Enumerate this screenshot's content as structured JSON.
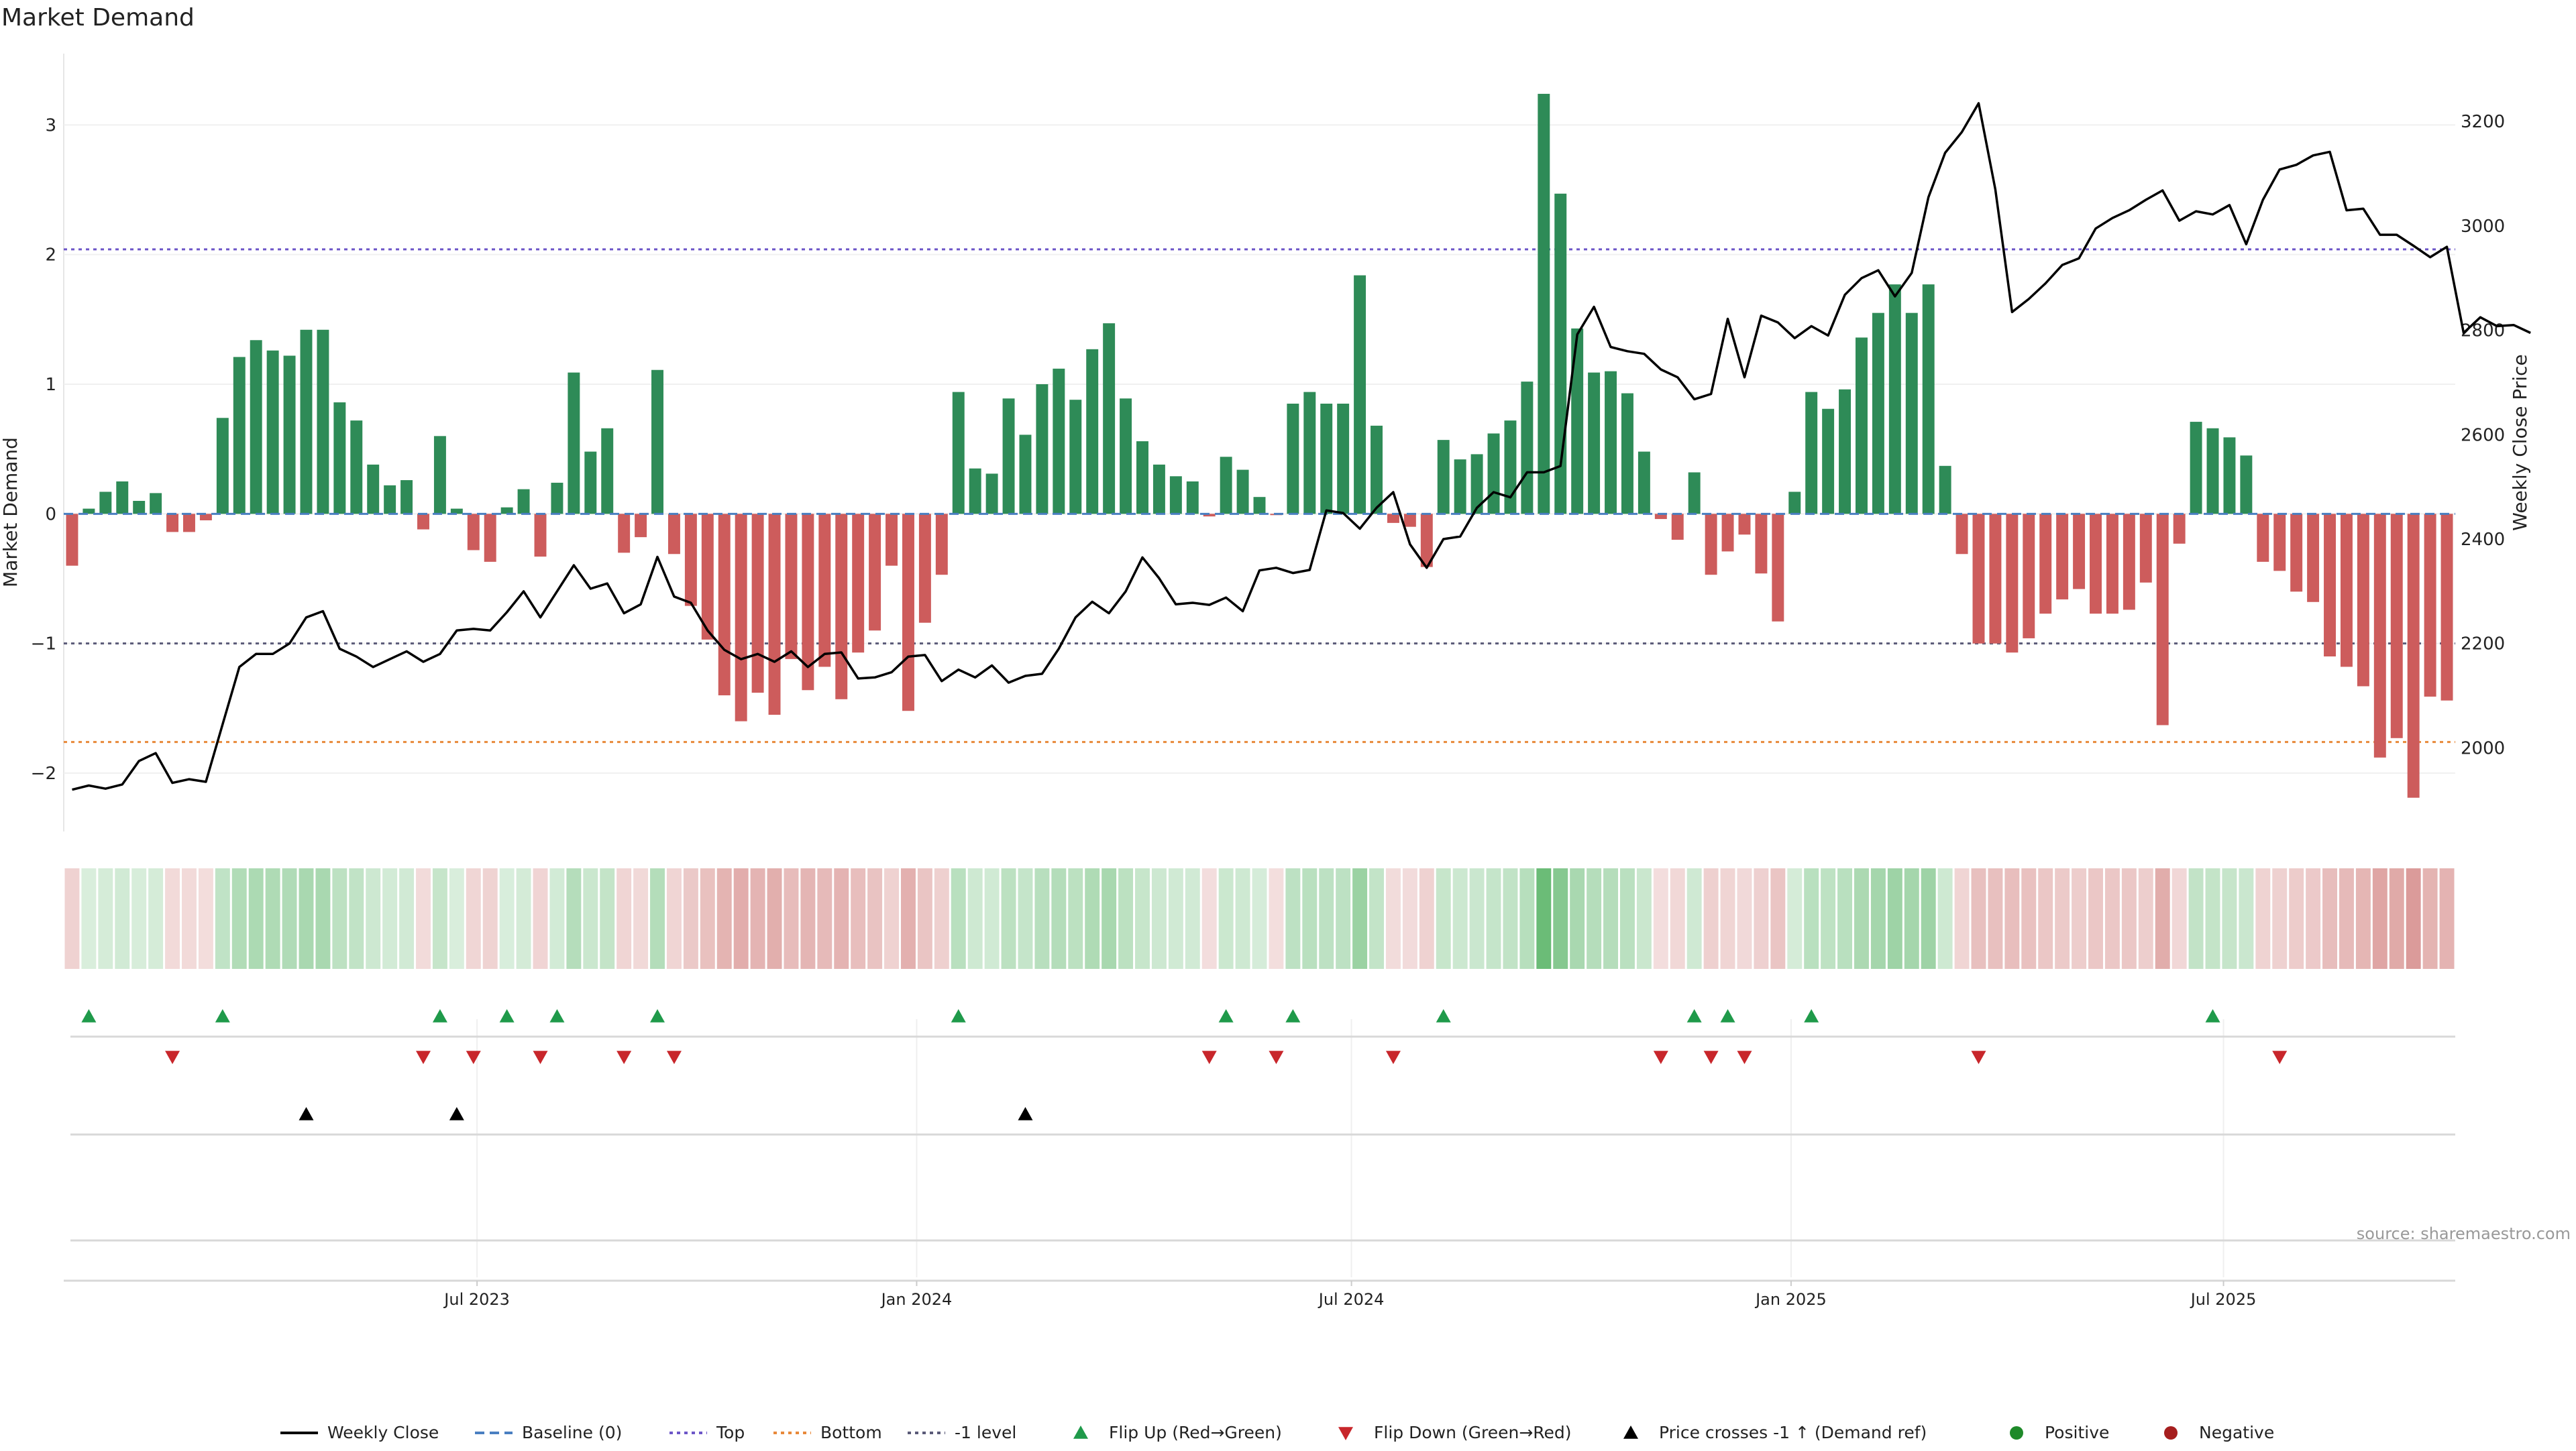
{
  "chart_data": {
    "type": "bar",
    "title": "Market Demand",
    "ylabel_left": "Market Demand",
    "ylabel_right": "Weekly Close Price",
    "source": "source: sharemaestro.com",
    "x_start": "2023-01-09",
    "x_end": "2025-10-06",
    "x_ticks": [
      {
        "date": "2023-07-01",
        "label": "Jul 2023"
      },
      {
        "date": "2024-01-01",
        "label": "Jan 2024"
      },
      {
        "date": "2024-07-01",
        "label": "Jul 2024"
      },
      {
        "date": "2025-01-01",
        "label": "Jan 2025"
      },
      {
        "date": "2025-07-01",
        "label": "Jul 2025"
      }
    ],
    "y_left_ticks": [
      {
        "v": 3,
        "label": "3"
      },
      {
        "v": 2,
        "label": "2"
      },
      {
        "v": 1,
        "label": "1"
      },
      {
        "v": 0,
        "label": "0"
      },
      {
        "v": -1,
        "label": "−1"
      },
      {
        "v": -2,
        "label": "−2"
      }
    ],
    "y_left_range": [
      -2.45,
      3.55
    ],
    "y_right_ticks": [
      {
        "v": 3200,
        "label": "3200"
      },
      {
        "v": 3000,
        "label": "3000"
      },
      {
        "v": 2800,
        "label": "2800"
      },
      {
        "v": 2600,
        "label": "2600"
      },
      {
        "v": 2400,
        "label": "2400"
      },
      {
        "v": 2200,
        "label": "2200"
      },
      {
        "v": 2000,
        "label": "2000"
      }
    ],
    "y_right_range": [
      1840,
      3330
    ],
    "levels": {
      "top": 2.04,
      "bottom": -1.76,
      "minus_one": -1.0
    },
    "demand": [
      -0.4,
      0.04,
      0.17,
      0.25,
      0.1,
      0.16,
      -0.14,
      -0.14,
      -0.05,
      0.74,
      1.21,
      1.34,
      1.26,
      1.22,
      1.42,
      1.42,
      0.86,
      0.72,
      0.38,
      0.22,
      0.26,
      -0.12,
      0.6,
      0.04,
      -0.28,
      -0.37,
      0.05,
      0.19,
      -0.33,
      0.24,
      1.09,
      0.48,
      0.66,
      -0.3,
      -0.18,
      1.11,
      -0.31,
      -0.71,
      -0.97,
      -1.4,
      -1.6,
      -1.38,
      -1.55,
      -1.12,
      -1.36,
      -1.18,
      -1.43,
      -1.07,
      -0.9,
      -0.4,
      -1.52,
      -0.84,
      -0.47,
      0.94,
      0.35,
      0.31,
      0.89,
      0.61,
      1.0,
      1.12,
      0.88,
      1.27,
      1.47,
      0.89,
      0.56,
      0.38,
      0.29,
      0.25,
      -0.02,
      0.44,
      0.34,
      0.13,
      -0.01,
      0.85,
      0.94,
      0.85,
      0.85,
      1.84,
      0.68,
      -0.07,
      -0.1,
      -0.41,
      0.57,
      0.42,
      0.46,
      0.62,
      0.72,
      1.02,
      3.24,
      2.47,
      1.43,
      1.09,
      1.1,
      0.93,
      0.48,
      -0.04,
      -0.2,
      0.32,
      -0.47,
      -0.29,
      -0.16,
      -0.46,
      -0.83,
      0.17,
      0.94,
      0.81,
      0.96,
      1.36,
      1.55,
      1.77,
      1.55,
      1.77,
      0.37,
      -0.31,
      -1.0,
      -1.0,
      -1.07,
      -0.96,
      -0.77,
      -0.66,
      -0.58,
      -0.77,
      -0.77,
      -0.74,
      -0.53,
      -1.63,
      -0.23,
      0.71,
      0.66,
      0.59,
      0.45,
      -0.37,
      -0.44,
      -0.6,
      -0.68,
      -1.1,
      -1.18,
      -1.33,
      -1.88,
      -1.73,
      -2.19,
      -1.41,
      -1.44
    ],
    "close": [
      1920,
      1928,
      1922,
      1930,
      1975,
      1990,
      1933,
      1940,
      1935,
      2045,
      2155,
      2180,
      2180,
      2200,
      2250,
      2262,
      2190,
      2175,
      2155,
      2170,
      2185,
      2165,
      2180,
      2225,
      2228,
      2225,
      2260,
      2300,
      2250,
      2300,
      2350,
      2305,
      2315,
      2258,
      2275,
      2366,
      2290,
      2278,
      2225,
      2188,
      2170,
      2180,
      2165,
      2185,
      2155,
      2180,
      2183,
      2133,
      2135,
      2145,
      2175,
      2178,
      2128,
      2150,
      2135,
      2158,
      2125,
      2138,
      2142,
      2190,
      2250,
      2280,
      2258,
      2300,
      2365,
      2325,
      2275,
      2278,
      2274,
      2288,
      2262,
      2340,
      2345,
      2335,
      2341,
      2455,
      2450,
      2420,
      2460,
      2490,
      2390,
      2345,
      2400,
      2405,
      2460,
      2490,
      2480,
      2528,
      2528,
      2540,
      2792,
      2845,
      2768,
      2760,
      2755,
      2725,
      2710,
      2668,
      2678,
      2822,
      2710,
      2828,
      2815,
      2785,
      2808,
      2790,
      2868,
      2900,
      2915,
      2865,
      2910,
      3055,
      3140,
      3180,
      3235,
      3070,
      2835,
      2860,
      2890,
      2925,
      2938,
      2995,
      3015,
      3030,
      3050,
      3068,
      3010,
      3028,
      3022,
      3040,
      2965,
      3050,
      3108,
      3117,
      3135,
      3142,
      3030,
      3033,
      2983,
      2983,
      2962,
      2940,
      2960,
      2795,
      2825,
      2808,
      2810,
      2795
    ],
    "flip_up": [
      1,
      9,
      22,
      26,
      29,
      35,
      53,
      69,
      73,
      82,
      97,
      99,
      104,
      128
    ],
    "flip_down": [
      6,
      21,
      24,
      28,
      33,
      36,
      68,
      72,
      79,
      95,
      98,
      100,
      114,
      132
    ],
    "cross_up": [
      14,
      23,
      57
    ],
    "legend": [
      {
        "label": "Weekly Close",
        "kind": "line",
        "color": "#000000"
      },
      {
        "label": "Baseline (0)",
        "kind": "dash",
        "color": "#4a7fc1"
      },
      {
        "label": "Top",
        "kind": "dot",
        "color": "#6d56c8"
      },
      {
        "label": "Bottom",
        "kind": "dot",
        "color": "#e8893a"
      },
      {
        "label": "-1 level",
        "kind": "dot",
        "color": "#5a5a78"
      },
      {
        "label": "Flip Up (Red→Green)",
        "kind": "tri-up",
        "color": "#1f9a4a"
      },
      {
        "label": "Flip Down (Green→Red)",
        "kind": "tri-down",
        "color": "#c8262b"
      },
      {
        "label": "Price crosses -1 ↑ (Demand ref)",
        "kind": "tri-up",
        "color": "#000000"
      },
      {
        "label": "Positive",
        "kind": "circle",
        "color": "#1f8a2a"
      },
      {
        "label": "Negative",
        "kind": "circle",
        "color": "#a61e1e"
      }
    ],
    "colors": {
      "positive": "#2e8b57",
      "negative": "#cd5c5c",
      "price": "#000000",
      "heat_pos": "#3aa64a",
      "heat_neg": "#c0504d"
    },
    "grid": true,
    "legend_position": "bottom"
  }
}
